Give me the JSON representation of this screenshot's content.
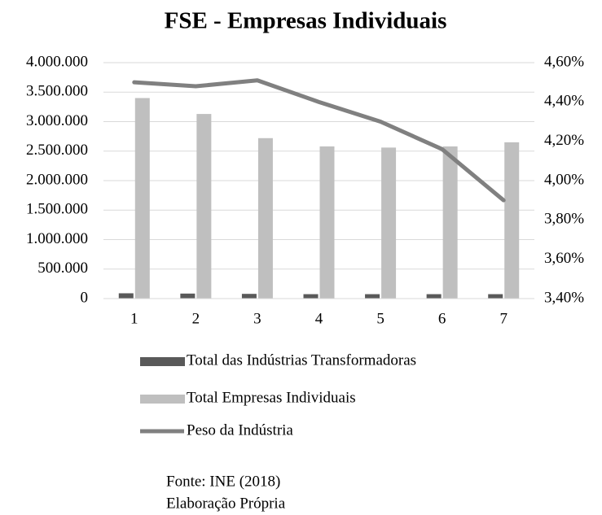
{
  "chart_data": {
    "type": "bar",
    "title": "FSE - Empresas Individuais",
    "categories": [
      "1",
      "2",
      "3",
      "4",
      "5",
      "6",
      "7"
    ],
    "series": [
      {
        "name": "Total das Indústrias Transformadoras",
        "color": "#595959",
        "values": [
          90000,
          85000,
          80000,
          75000,
          75000,
          75000,
          75000
        ]
      },
      {
        "name": "Total Empresas Individuais",
        "color": "#bfbfbf",
        "values": [
          3400000,
          3130000,
          2720000,
          2580000,
          2560000,
          2580000,
          2650000
        ]
      },
      {
        "name": "Peso da Indústria",
        "color": "#808080",
        "type": "line",
        "axis": "y2",
        "values": [
          4.5,
          4.48,
          4.51,
          4.4,
          4.3,
          4.16,
          3.9
        ]
      }
    ],
    "ylim": [
      0,
      4000000
    ],
    "yticks": [
      0,
      {
        "value": 500000,
        "label": "500.000"
      },
      {
        "value": 1000000,
        "label": "1.000.000"
      },
      {
        "value": 1500000,
        "label": "1.500.000"
      },
      {
        "value": 2000000,
        "label": "2.000.000"
      },
      {
        "value": 2500000,
        "label": "2.500.000"
      },
      {
        "value": 3000000,
        "label": "3.000.000"
      },
      {
        "value": 3500000,
        "label": "3.500.000"
      },
      {
        "value": 4000000,
        "label": "4.000.000"
      }
    ],
    "y2lim": [
      3.4,
      4.6
    ],
    "y2ticks": [
      {
        "value": 3.4,
        "label": "3,40%"
      },
      {
        "value": 3.6,
        "label": "3,60%"
      },
      {
        "value": 3.8,
        "label": "3,80%"
      },
      {
        "value": 4.0,
        "label": "4,00%"
      },
      {
        "value": 4.2,
        "label": "4,20%"
      },
      {
        "value": 4.4,
        "label": "4,40%"
      },
      {
        "value": 4.6,
        "label": "4,60%"
      }
    ],
    "grid": true,
    "legend": "bottom",
    "notes": [
      "Fonte: INE (2018)",
      "Elaboração Própria"
    ]
  }
}
